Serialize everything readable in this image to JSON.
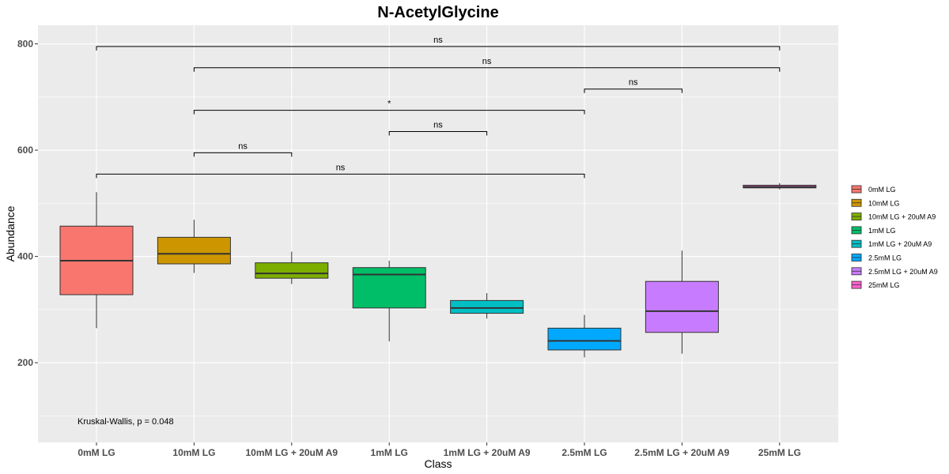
{
  "chart_data": {
    "type": "box",
    "title": "N-AcetylGlycine",
    "xlabel": "Class",
    "ylabel": "Abundance",
    "ylim": [
      50,
      835
    ],
    "yticks": [
      200,
      400,
      600,
      800
    ],
    "grid": true,
    "legend_position": "right",
    "categories": [
      "0mM LG",
      "10mM LG",
      "10mM LG + 20uM A9",
      "1mM LG",
      "1mM LG + 20uM A9",
      "2.5mM LG",
      "2.5mM LG + 20uM A9",
      "25mM LG"
    ],
    "boxes": [
      {
        "name": "0mM LG",
        "color": "#F8766D",
        "whisker_low": 265,
        "q1": 328,
        "median": 392,
        "q3": 457,
        "whisker_high": 521
      },
      {
        "name": "10mM LG",
        "color": "#CD9600",
        "whisker_low": 369,
        "q1": 386,
        "median": 405,
        "q3": 436,
        "whisker_high": 469
      },
      {
        "name": "10mM LG + 20uM A9",
        "color": "#7CAE00",
        "whisker_low": 348,
        "q1": 359,
        "median": 368,
        "q3": 388,
        "whisker_high": 409
      },
      {
        "name": "1mM LG",
        "color": "#00BE67",
        "whisker_low": 240,
        "q1": 303,
        "median": 366,
        "q3": 379,
        "whisker_high": 392
      },
      {
        "name": "1mM LG + 20uM A9",
        "color": "#00BFC4",
        "whisker_low": 283,
        "q1": 293,
        "median": 303,
        "q3": 317,
        "whisker_high": 331
      },
      {
        "name": "2.5mM LG",
        "color": "#00A9FF",
        "whisker_low": 210,
        "q1": 224,
        "median": 241,
        "q3": 265,
        "whisker_high": 290
      },
      {
        "name": "2.5mM LG + 20uM A9",
        "color": "#C77CFF",
        "whisker_low": 217,
        "q1": 257,
        "median": 297,
        "q3": 353,
        "whisker_high": 411
      },
      {
        "name": "25mM LG",
        "color": "#FF61CC",
        "whisker_low": 526,
        "q1": 529,
        "median": 531,
        "q3": 534,
        "whisker_high": 538
      }
    ],
    "comparisons": [
      {
        "from": 0,
        "to": 7,
        "y": 795,
        "label": "ns"
      },
      {
        "from": 1,
        "to": 7,
        "y": 755,
        "label": "ns"
      },
      {
        "from": 5,
        "to": 6,
        "y": 715,
        "label": "ns"
      },
      {
        "from": 1,
        "to": 5,
        "y": 675,
        "label": "*"
      },
      {
        "from": 3,
        "to": 4,
        "y": 635,
        "label": "ns"
      },
      {
        "from": 1,
        "to": 2,
        "y": 595,
        "label": "ns"
      },
      {
        "from": 0,
        "to": 5,
        "y": 555,
        "label": "ns"
      }
    ],
    "test_annotation": "Kruskal-Wallis, p = 0.048"
  }
}
